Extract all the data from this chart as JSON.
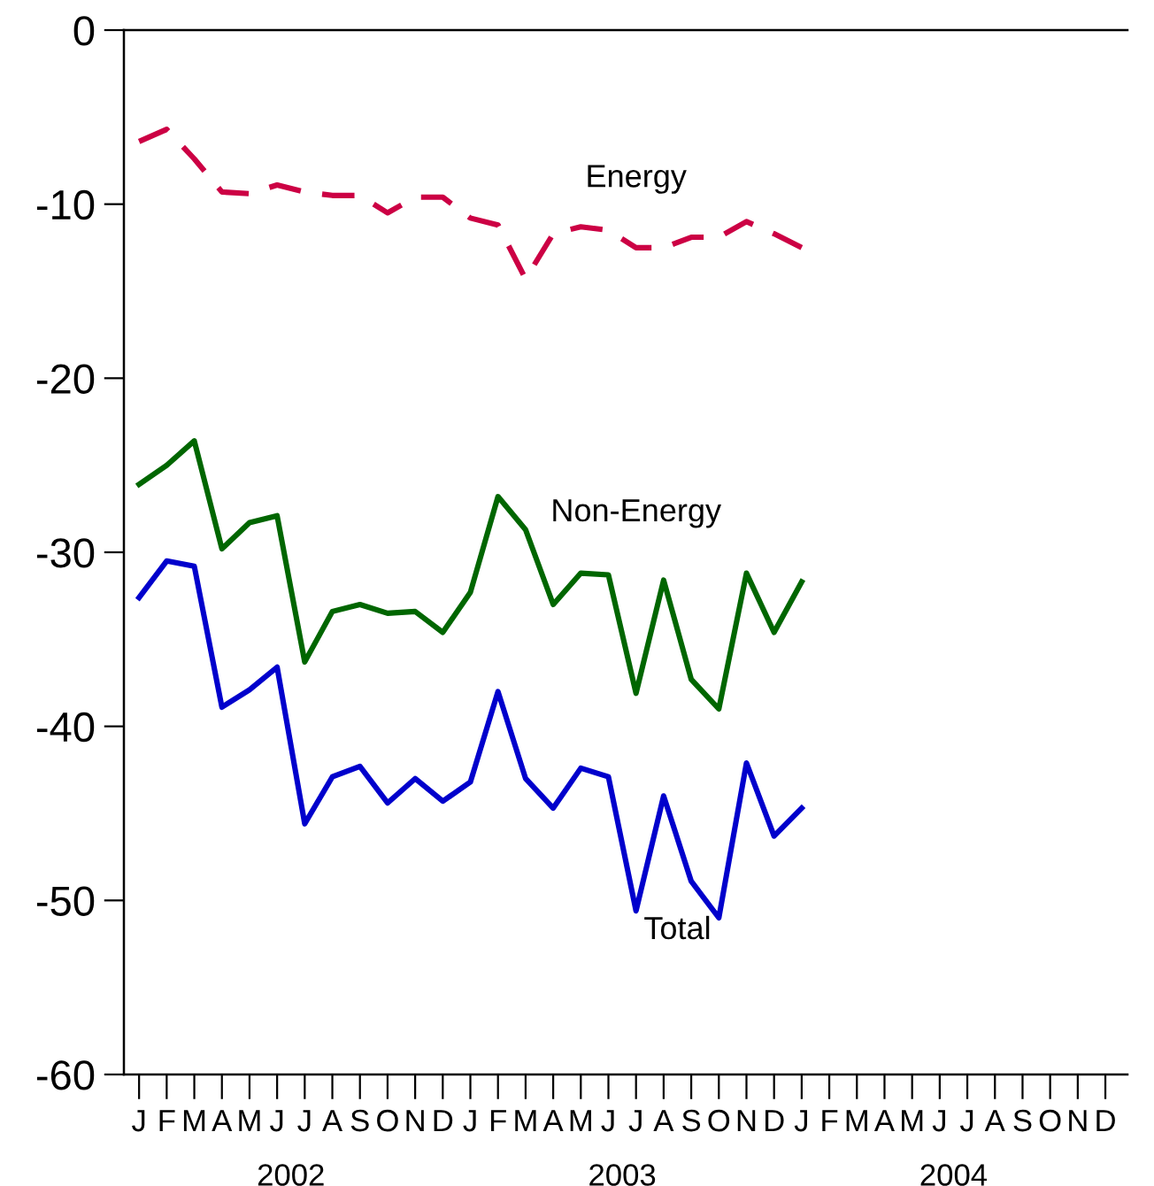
{
  "chart_data": {
    "type": "line",
    "categories": [
      "J",
      "F",
      "M",
      "A",
      "M",
      "J",
      "J",
      "A",
      "S",
      "O",
      "N",
      "D",
      "J",
      "F",
      "M",
      "A",
      "M",
      "J",
      "J",
      "A",
      "S",
      "O",
      "N",
      "D",
      "J",
      "F",
      "M",
      "A",
      "M",
      "J",
      "J",
      "A",
      "S",
      "O",
      "N",
      "D"
    ],
    "series": [
      {
        "name": "Energy",
        "color": "#cc0044",
        "line_style": "dashed",
        "values": [
          -6.4,
          -5.7,
          -7.4,
          -9.3,
          -9.4,
          -8.9,
          -9.3,
          -9.5,
          -9.5,
          -10.5,
          -9.6,
          -9.6,
          -10.8,
          -11.2,
          -14.3,
          -11.7,
          -11.3,
          -11.5,
          -12.5,
          -12.5,
          -11.9,
          -11.9,
          -11.0,
          -11.7,
          -12.5,
          null,
          null,
          null,
          null,
          null,
          null,
          null,
          null,
          null,
          null,
          null
        ]
      },
      {
        "name": "Non-Energy",
        "color": "#006600",
        "line_style": "solid",
        "values": [
          -26.1,
          -25.0,
          -23.6,
          -29.8,
          -28.3,
          -27.9,
          -36.3,
          -33.4,
          -33.0,
          -33.5,
          -33.4,
          -34.6,
          -32.3,
          -26.8,
          -28.7,
          -33.0,
          -31.2,
          -31.3,
          -38.1,
          -31.6,
          -37.3,
          -39.0,
          -31.2,
          -34.6,
          -31.7,
          null,
          null,
          null,
          null,
          null,
          null,
          null,
          null,
          null,
          null,
          null
        ]
      },
      {
        "name": "Total",
        "color": "#0000cc",
        "line_style": "solid",
        "values": [
          -32.6,
          -30.5,
          -30.8,
          -38.9,
          -37.9,
          -36.6,
          -45.6,
          -42.9,
          -42.3,
          -44.4,
          -43.0,
          -44.3,
          -43.2,
          -38.0,
          -43.0,
          -44.7,
          -42.4,
          -42.9,
          -50.6,
          -44.0,
          -48.9,
          -51.0,
          -42.1,
          -46.3,
          -44.7,
          null,
          null,
          null,
          null,
          null,
          null,
          null,
          null,
          null,
          null,
          null
        ]
      }
    ],
    "ylim": [
      -60,
      0
    ],
    "yticks": [
      0,
      -10,
      -20,
      -30,
      -40,
      -50,
      -60
    ],
    "annotations": [
      "2002",
      "2003",
      "2004"
    ],
    "grid": false,
    "legend": false,
    "marker": "none"
  }
}
